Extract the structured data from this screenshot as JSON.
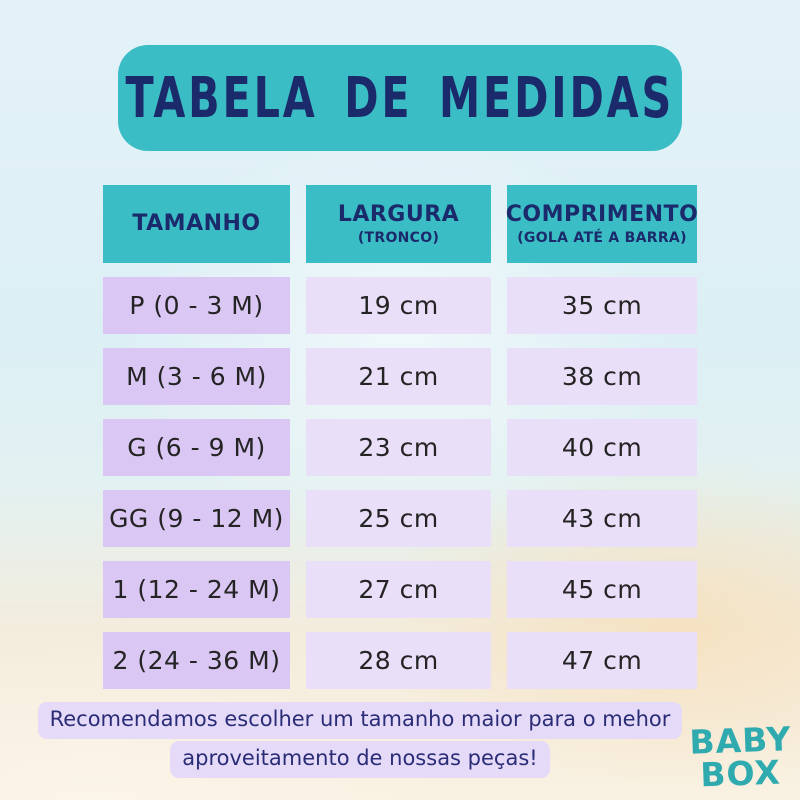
{
  "title": "TABELA DE MEDIDAS",
  "colors": {
    "teal": "#3abdc5",
    "navy": "#1b2a6b",
    "lavender_dark": "#dbc7f4",
    "lavender_light": "#eadff8",
    "note_highlight": "#e5dbf8",
    "note_text": "#2b2c77",
    "logo_teal": "#2faaaf",
    "background_top": "#e3f2f8",
    "background_bottom": "#f9f1e2"
  },
  "table": {
    "headers": {
      "col1": {
        "main": "TAMANHO",
        "sub": ""
      },
      "col2": {
        "main": "LARGURA",
        "sub": "(TRONCO)"
      },
      "col3": {
        "main": "COMPRIMENTO",
        "sub": "(GOLA ATÉ A BARRA)"
      }
    },
    "rows": [
      {
        "size": "P (0 - 3 M)",
        "width": "19 cm",
        "length": "35 cm"
      },
      {
        "size": "M (3 - 6 M)",
        "width": "21 cm",
        "length": "38 cm"
      },
      {
        "size": "G (6 - 9 M)",
        "width": "23 cm",
        "length": "40 cm"
      },
      {
        "size": "GG (9 - 12 M)",
        "width": "25 cm",
        "length": "43 cm"
      },
      {
        "size": "1 (12 - 24 M)",
        "width": "27 cm",
        "length": "45 cm"
      },
      {
        "size": "2 (24 - 36 M)",
        "width": "28 cm",
        "length": "47 cm"
      }
    ]
  },
  "note": {
    "line1": "Recomendamos escolher um tamanho maior para o mehor",
    "line2": "aproveitamento de nossas peças!"
  },
  "logo": {
    "line1": "BABY",
    "line2": "BOX"
  },
  "chart_data": {
    "type": "table",
    "title": "TABELA DE MEDIDAS",
    "columns": [
      "TAMANHO",
      "LARGURA (TRONCO)",
      "COMPRIMENTO (GOLA ATÉ A BARRA)"
    ],
    "rows": [
      [
        "P (0 - 3 M)",
        "19 cm",
        "35 cm"
      ],
      [
        "M (3 - 6 M)",
        "21 cm",
        "38 cm"
      ],
      [
        "G (6 - 9 M)",
        "23 cm",
        "40 cm"
      ],
      [
        "GG (9 - 12 M)",
        "25 cm",
        "43 cm"
      ],
      [
        "1 (12 - 24 M)",
        "27 cm",
        "45 cm"
      ],
      [
        "2 (24 - 36 M)",
        "28 cm",
        "47 cm"
      ]
    ],
    "footnote": "Recomendamos escolher um tamanho maior para o mehor aproveitamento de nossas peças!"
  }
}
